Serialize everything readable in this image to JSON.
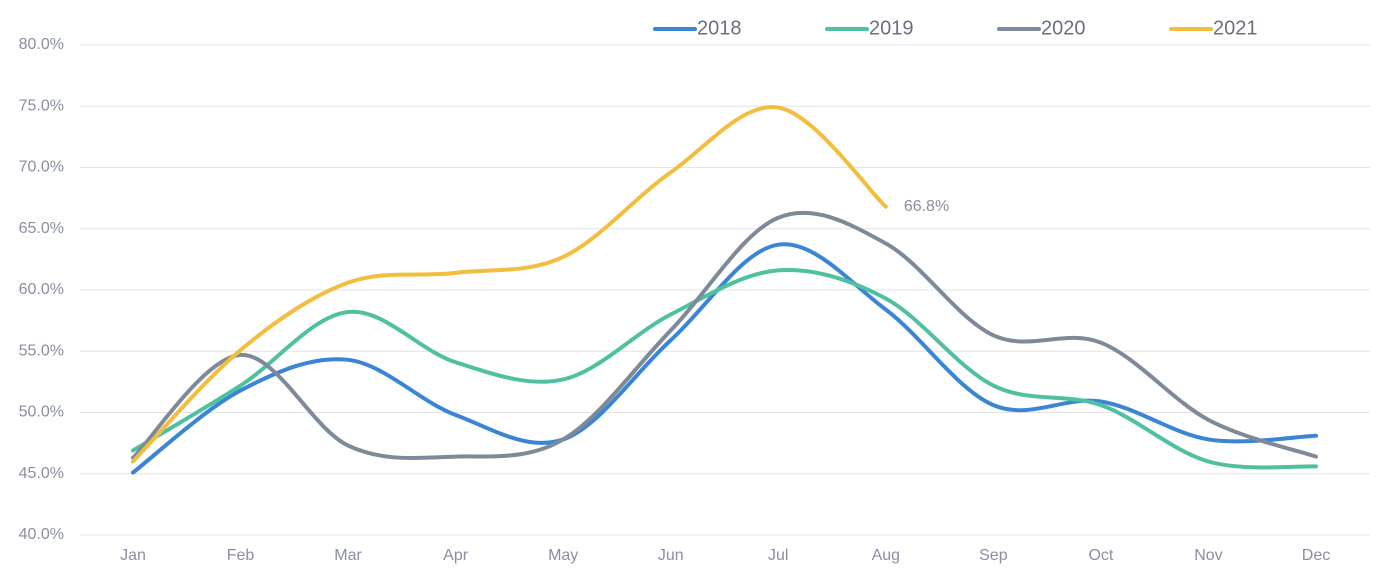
{
  "chart_data": {
    "type": "line",
    "categories": [
      "Jan",
      "Feb",
      "Mar",
      "Apr",
      "May",
      "Jun",
      "Jul",
      "Aug",
      "Sep",
      "Oct",
      "Nov",
      "Dec"
    ],
    "series": [
      {
        "name": "2018",
        "color": "#3a85d4",
        "values": [
          45.1,
          51.8,
          54.3,
          49.8,
          47.8,
          55.9,
          63.7,
          58.4,
          50.6,
          50.9,
          47.8,
          48.1
        ]
      },
      {
        "name": "2019",
        "color": "#4fc0a0",
        "values": [
          46.9,
          52.2,
          58.2,
          54.1,
          52.7,
          58.0,
          61.6,
          59.3,
          52.2,
          50.6,
          46.0,
          45.6
        ]
      },
      {
        "name": "2020",
        "color": "#7f8a98",
        "values": [
          46.3,
          54.7,
          47.3,
          46.4,
          47.8,
          56.7,
          65.9,
          63.8,
          56.3,
          55.7,
          49.4,
          46.4
        ]
      },
      {
        "name": "2021",
        "color": "#f3bd3e",
        "values": [
          46.0,
          55.1,
          60.6,
          61.4,
          62.7,
          69.6,
          74.9,
          66.8,
          null,
          null,
          null,
          null
        ],
        "value_labels": [
          null,
          null,
          null,
          null,
          null,
          null,
          null,
          "66.8%",
          null,
          null,
          null,
          null
        ]
      }
    ],
    "ylim": [
      40,
      80
    ],
    "yticks": [
      {
        "value": 40,
        "label": "40.0%"
      },
      {
        "value": 45,
        "label": "45.0%"
      },
      {
        "value": 50,
        "label": "50.0%"
      },
      {
        "value": 55,
        "label": "55.0%"
      },
      {
        "value": 60,
        "label": "60.0%"
      },
      {
        "value": 65,
        "label": "65.0%"
      },
      {
        "value": 70,
        "label": "70.0%"
      },
      {
        "value": 75,
        "label": "75.0%"
      },
      {
        "value": 80,
        "label": "80.0%"
      }
    ],
    "grid": true,
    "legend": "top",
    "smooth": true
  }
}
